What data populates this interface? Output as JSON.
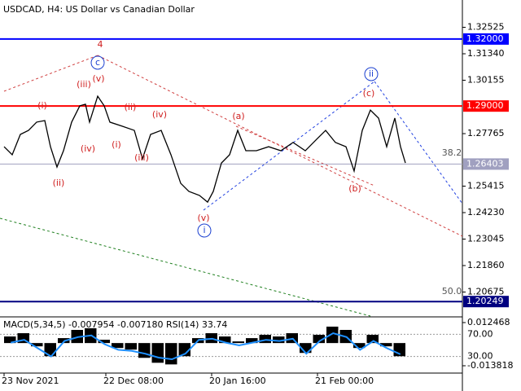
{
  "chart_data": {
    "type": "line",
    "title": "USDCAD, H4:  US Dollar vs Canadian Dollar",
    "x": [
      5,
      15,
      25,
      35,
      45,
      55,
      62,
      70,
      78,
      88,
      98,
      105,
      110,
      120,
      128,
      135,
      150,
      165,
      175,
      185,
      198,
      210,
      222,
      232,
      245,
      255,
      262,
      272,
      282,
      292,
      302,
      315,
      330,
      345,
      360,
      375,
      390,
      400,
      412,
      425,
      435,
      445,
      455,
      465,
      475,
      485,
      492,
      498
    ],
    "values": [
      1.2718,
      1.2682,
      1.2773,
      1.2791,
      1.2828,
      1.2835,
      1.2718,
      1.2627,
      1.27,
      1.2828,
      1.2901,
      1.2908,
      1.2828,
      1.2944,
      1.2901,
      1.2828,
      1.281,
      1.2791,
      1.2664,
      1.2773,
      1.2791,
      1.2682,
      1.2554,
      1.2518,
      1.25,
      1.247,
      1.2518,
      1.2645,
      1.2682,
      1.2791,
      1.27,
      1.27,
      1.2718,
      1.27,
      1.2737,
      1.27,
      1.2755,
      1.2791,
      1.2737,
      1.2718,
      1.2609,
      1.2791,
      1.2882,
      1.2846,
      1.2718,
      1.2846,
      1.2718,
      1.2645
    ],
    "color": "#000000",
    "xlim": [
      0,
      568
    ],
    "xticks": [
      {
        "value": 5,
        "label": "23 Nov 2021"
      },
      {
        "value": 130,
        "label": "22 Dec 08:00"
      },
      {
        "value": 260,
        "label": "20 Jan 16:00"
      },
      {
        "value": 390,
        "label": "21 Feb 00:00"
      }
    ],
    "ylim": [
      1.196,
      1.33746
    ],
    "yticks": [
      1.32525,
      {
        "value": 1.3134,
        "label": "1.31340"
      },
      1.30155,
      1.27765,
      1.25415,
      {
        "value": 1.2423,
        "label": "1.24230"
      },
      1.23045,
      {
        "value": 1.2186,
        "label": "1.21860"
      },
      1.20675
    ],
    "levels": [
      {
        "value": 1.32,
        "label": "1.32000",
        "color": "#0000ff"
      },
      {
        "value": 1.29,
        "label": "1.29000",
        "color": "#ff0000"
      },
      {
        "value": 1.26403,
        "label": "1.26403",
        "color": "#a0a0c0"
      },
      {
        "value": 1.20249,
        "label": "1.20249",
        "color": "#000080"
      }
    ],
    "annotations": [
      {
        "text": "4",
        "color": "#d02020"
      },
      {
        "text": "c",
        "color": "#1a3fd0",
        "circled": true
      },
      {
        "text": "(iii)",
        "color": "#d02020"
      },
      {
        "text": "(v)",
        "color": "#d02020"
      },
      {
        "text": "(i)",
        "color": "#d02020"
      },
      {
        "text": "(ii)",
        "color": "#d02020"
      },
      {
        "text": "(iv)",
        "color": "#d02020"
      },
      {
        "text": "(a)",
        "color": "#d02020"
      },
      {
        "text": "(ii)",
        "color": "#d02020"
      },
      {
        "text": "(iv)",
        "color": "#d02020"
      },
      {
        "text": "(i)",
        "color": "#d02020"
      },
      {
        "text": "(iii)",
        "color": "#d02020"
      },
      {
        "text": "(v)",
        "color": "#d02020"
      },
      {
        "text": "i",
        "color": "#1a3fd0",
        "circled": true
      },
      {
        "text": "ii",
        "color": "#1a3fd0",
        "circled": true
      },
      {
        "text": "(c)",
        "color": "#d02020"
      },
      {
        "text": "(b)",
        "color": "#d02020"
      },
      {
        "text": "38.2",
        "color": "#555555"
      },
      {
        "text": "50.0",
        "color": "#555555"
      }
    ],
    "indicator": {
      "title": "MACD(5,34,5) -0.007954 -0.007180 RSI(14) 33.74",
      "macd": {
        "color": "#000000",
        "ylim": [
          -0.01828,
          0.015444
        ],
        "yticks": [
          0.012468,
          -0.013818
        ],
        "values": [
          0.004,
          0.006,
          -0.002,
          -0.008,
          0.003,
          0.008,
          0.009,
          0.002,
          -0.003,
          -0.004,
          -0.009,
          -0.012,
          -0.013,
          -0.008,
          0.003,
          0.006,
          0.004,
          0.001,
          0.003,
          0.005,
          0.004,
          0.006,
          -0.006,
          0.005,
          0.01,
          0.008,
          -0.003,
          0.005,
          -0.002,
          -0.008
        ]
      },
      "rsi": {
        "color": "#1e90ff",
        "ylim": [
          0,
          100
        ],
        "yticks": [
          {
            "value": 70,
            "label": "70.00"
          },
          {
            "value": 30,
            "label": "30.00"
          }
        ],
        "values": [
          55,
          60,
          45,
          30,
          58,
          65,
          68,
          52,
          42,
          40,
          35,
          28,
          25,
          35,
          60,
          62,
          55,
          50,
          55,
          60,
          58,
          62,
          35,
          58,
          72,
          65,
          42,
          58,
          45,
          34
        ]
      }
    }
  }
}
